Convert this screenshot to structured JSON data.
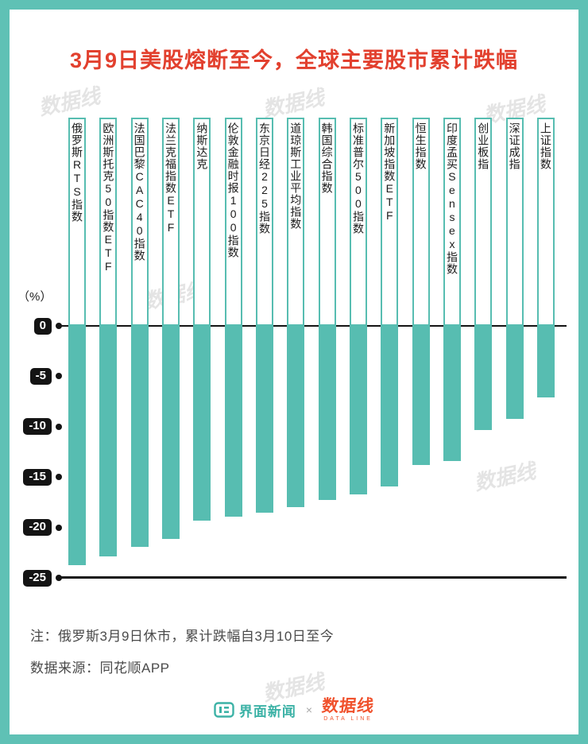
{
  "page": {
    "title": "3月9日美股熔断至今，全球主要股市累计跌幅"
  },
  "chart_data": {
    "type": "bar",
    "title": "3月9日美股熔断至今，全球主要股市累计跌幅",
    "unit_label": "（%）",
    "categories": [
      "俄罗斯RTS指数",
      "欧洲斯托克50指数ETF",
      "法国巴黎CAC40指数",
      "法兰克福指数ETF",
      "纳斯达克",
      "伦敦金融时报100指数",
      "东京日经225指数",
      "道琼斯工业平均指数",
      "韩国综合指数",
      "标准普尔500指数",
      "新加坡指数ETF",
      "恒生指数",
      "印度孟买Sensex指数",
      "创业板指",
      "深证成指",
      "上证指数"
    ],
    "values": [
      -23.7,
      -22.9,
      -21.9,
      -21.1,
      -19.3,
      -18.9,
      -18.5,
      -18.0,
      -17.3,
      -16.7,
      -15.9,
      -13.8,
      -13.4,
      -10.3,
      -9.2,
      -7.1
    ],
    "yticks": [
      0,
      -5,
      -10,
      -15,
      -20,
      -25
    ],
    "ylim": [
      -25,
      0
    ],
    "grid": false,
    "legend": null,
    "bar_color": "#57bdb1"
  },
  "notes": {
    "line1": "注：俄罗斯3月9日休市，累计跌幅自3月10日至今",
    "line2": "数据来源：同花顺APP"
  },
  "footer": {
    "brand1": "界面新闻",
    "separator": "×",
    "brand2": "数据线",
    "brand2_sub": "DATA LINE"
  },
  "watermark": {
    "text": "数据线"
  },
  "colors": {
    "frame": "#5fc1b5",
    "bar": "#57bdb1",
    "title_red": "#e2402e",
    "tick_badge": "#141414",
    "brand_teal": "#3cb2a6",
    "brand_orange": "#f0512c"
  }
}
